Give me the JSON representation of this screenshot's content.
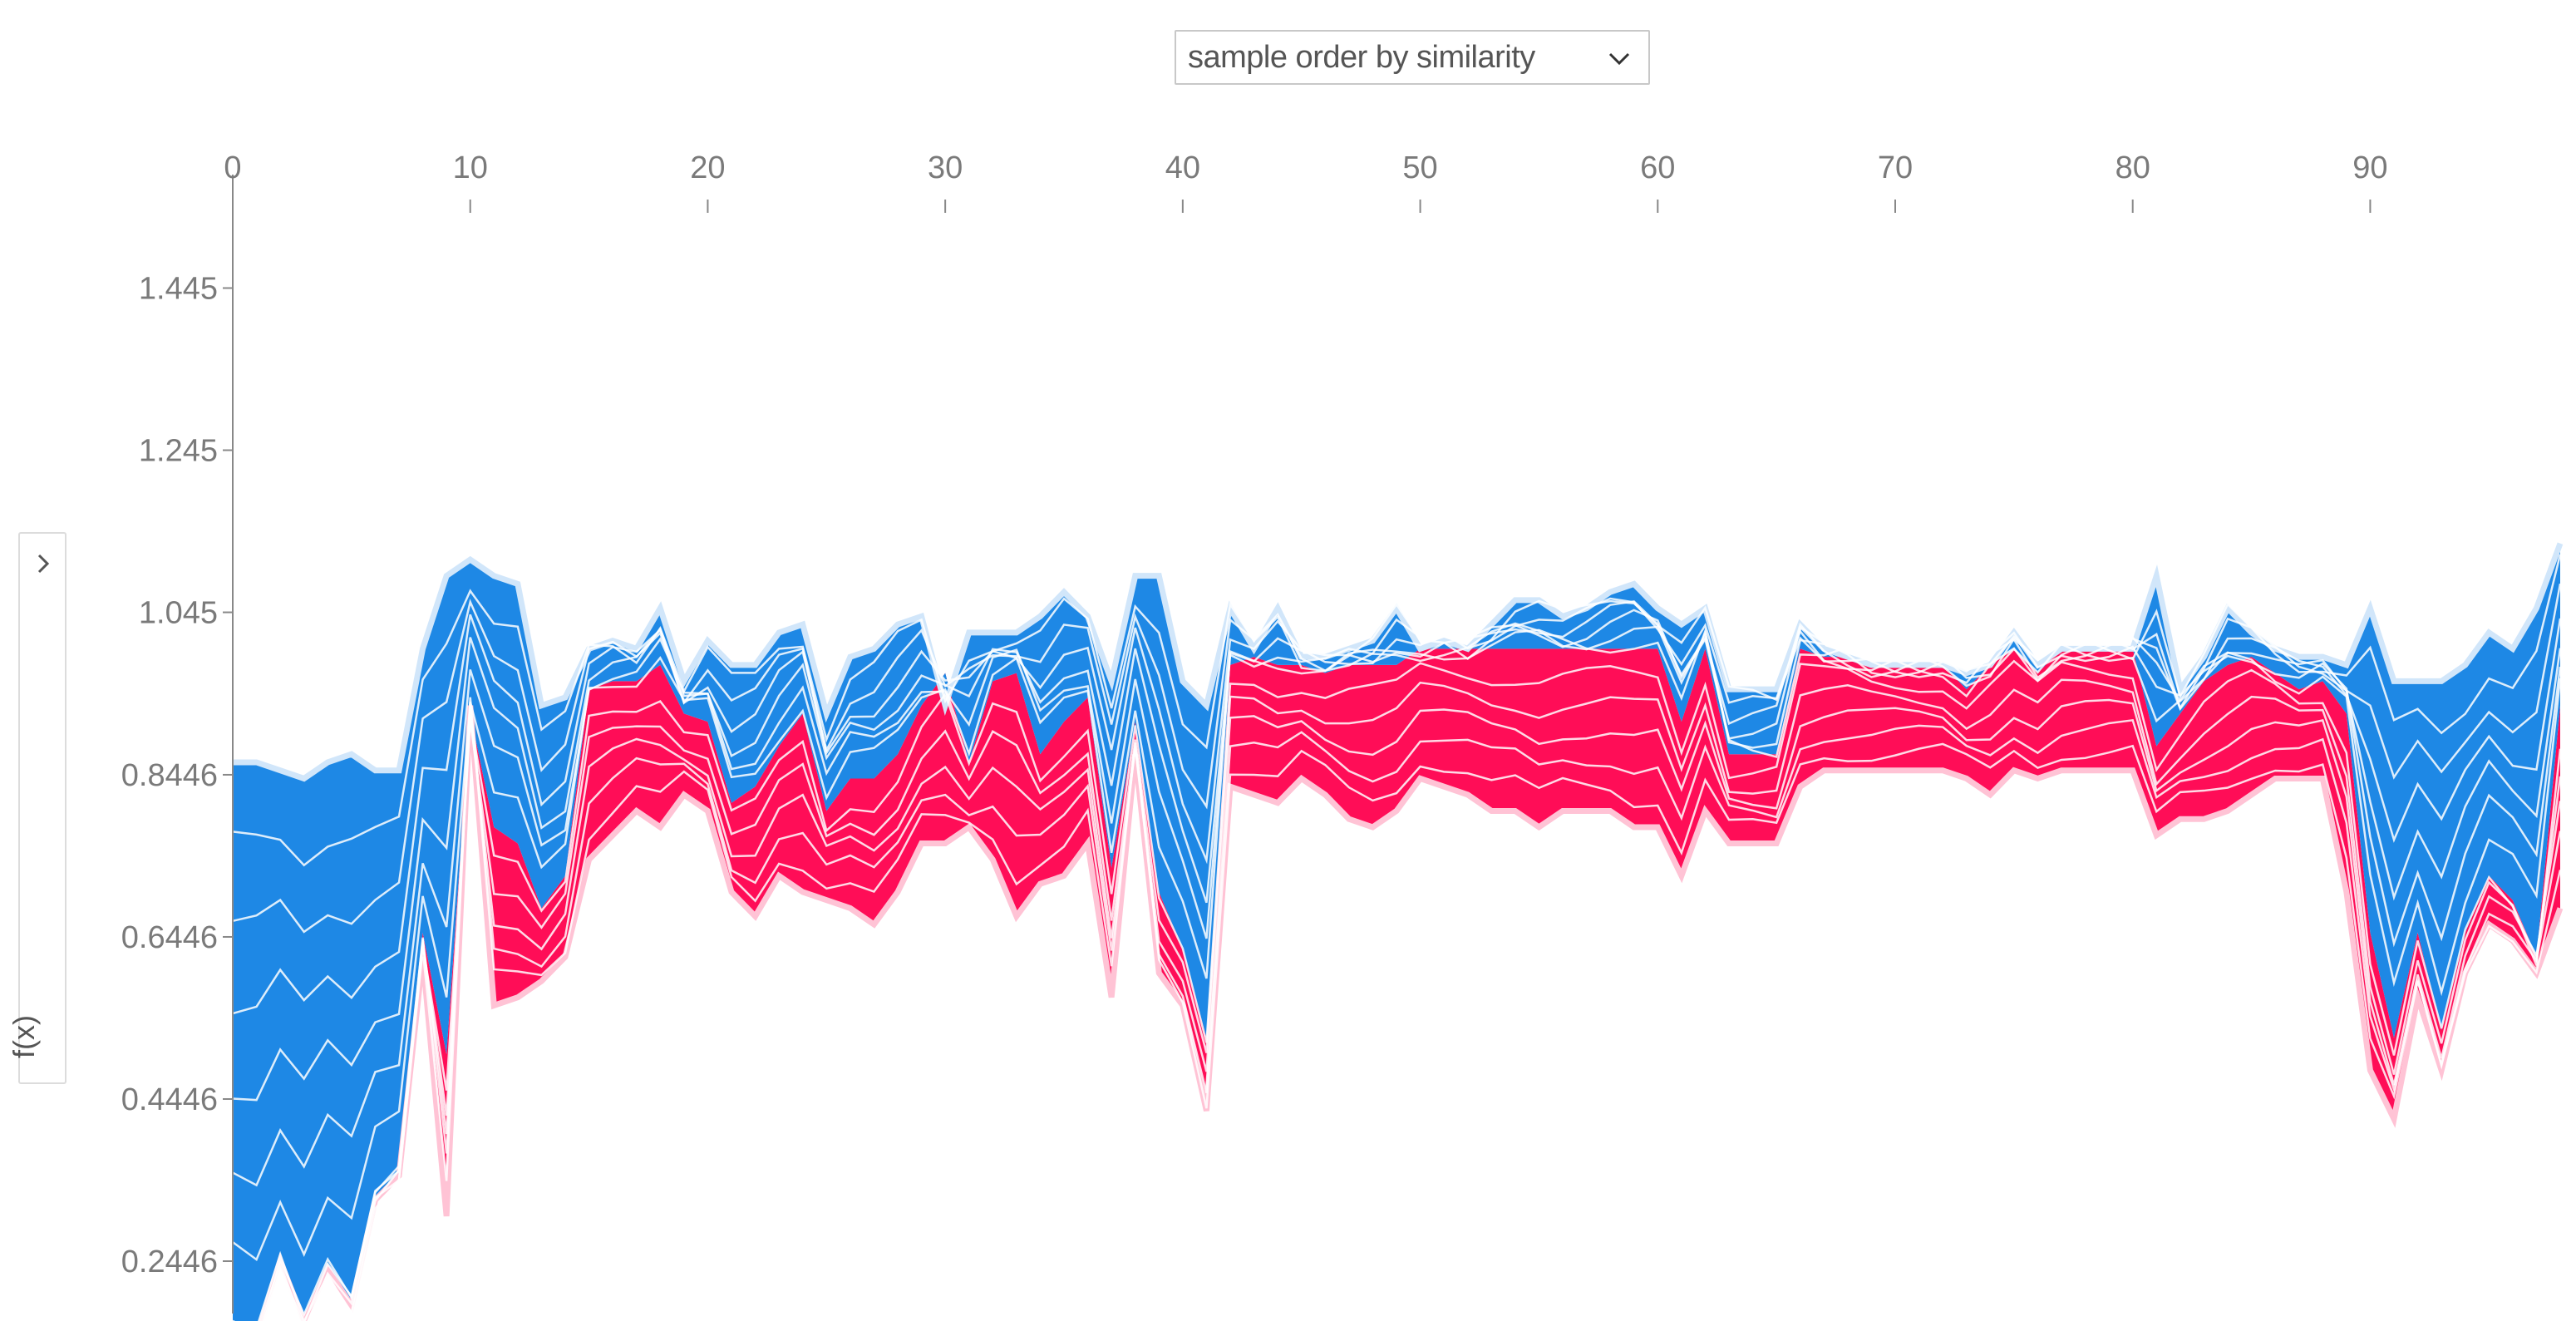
{
  "controls": {
    "order_select": {
      "label": "sample order by similarity",
      "chevron_icon": "chevron-down-icon"
    },
    "side_toggle": {
      "icon": "chevron-right-icon",
      "axis_label": "f(x)"
    }
  },
  "colors": {
    "positive": "#ff0d57",
    "positive_edge": "#ffc3d5",
    "negative": "#1e88e5",
    "negative_edge": "#d1e6fa",
    "separator": "#ffffff",
    "axis": "#888888",
    "tick_text": "#7a7a7a"
  },
  "chart_data": {
    "type": "area",
    "description_units": "stacked additive force plot; x = sample index, y = f(x)",
    "x_ticks": [
      0,
      10,
      20,
      30,
      40,
      50,
      60,
      70,
      80,
      90
    ],
    "y_ticks": [
      1.445,
      1.245,
      1.045,
      0.8446,
      0.6446,
      0.4446,
      0.2446
    ],
    "y_tick_labels": [
      "1.445",
      "1.245",
      "1.045",
      "0.8446",
      "0.6446",
      "0.4446",
      "0.2446"
    ],
    "xlim": [
      0,
      98
    ],
    "ylim": [
      0.18,
      1.585
    ],
    "ylabel": "f(x)",
    "grid": false,
    "x": [
      0,
      1,
      2,
      3,
      4,
      5,
      6,
      7,
      8,
      9,
      10,
      11,
      12,
      13,
      14,
      15,
      16,
      17,
      18,
      19,
      20,
      21,
      22,
      23,
      24,
      25,
      26,
      27,
      28,
      29,
      30,
      31,
      32,
      33,
      34,
      35,
      36,
      37,
      38,
      39,
      40,
      41,
      42,
      43,
      44,
      45,
      46,
      47,
      48,
      49,
      50,
      51,
      52,
      53,
      54,
      55,
      56,
      57,
      58,
      59,
      60,
      61,
      62,
      63,
      64,
      65,
      66,
      67,
      68,
      69,
      70,
      71,
      72,
      73,
      74,
      75,
      76,
      77,
      78,
      79,
      80,
      81,
      82,
      83,
      84,
      85,
      86,
      87,
      88,
      89,
      90,
      91,
      92,
      93,
      94,
      95,
      96,
      97,
      98
    ],
    "fx": [
      0.16,
      0.15,
      0.245,
      0.17,
      0.235,
      0.19,
      0.32,
      0.35,
      0.62,
      0.3,
      0.93,
      0.56,
      0.57,
      0.59,
      0.62,
      0.74,
      0.77,
      0.8,
      0.78,
      0.82,
      0.8,
      0.7,
      0.67,
      0.72,
      0.7,
      0.69,
      0.68,
      0.66,
      0.7,
      0.76,
      0.76,
      0.78,
      0.74,
      0.67,
      0.71,
      0.72,
      0.76,
      0.57,
      0.87,
      0.6,
      0.56,
      0.43,
      0.83,
      0.82,
      0.81,
      0.84,
      0.82,
      0.79,
      0.78,
      0.8,
      0.84,
      0.83,
      0.82,
      0.8,
      0.8,
      0.78,
      0.8,
      0.8,
      0.8,
      0.78,
      0.78,
      0.72,
      0.8,
      0.76,
      0.76,
      0.76,
      0.83,
      0.85,
      0.85,
      0.85,
      0.85,
      0.85,
      0.85,
      0.84,
      0.82,
      0.85,
      0.84,
      0.85,
      0.85,
      0.85,
      0.85,
      0.77,
      0.79,
      0.79,
      0.8,
      0.82,
      0.84,
      0.84,
      0.84,
      0.7,
      0.48,
      0.42,
      0.57,
      0.48,
      0.6,
      0.66,
      0.64,
      0.6,
      0.68
    ],
    "series": [
      {
        "name": "",
        "sign": "positive",
        "top": [
          0.16,
          0.15,
          0.245,
          0.17,
          0.235,
          0.19,
          0.32,
          0.35,
          0.65,
          0.5,
          0.92,
          0.78,
          0.76,
          0.68,
          0.72,
          0.95,
          0.96,
          0.96,
          0.98,
          0.92,
          0.91,
          0.81,
          0.83,
          0.88,
          0.92,
          0.8,
          0.84,
          0.84,
          0.87,
          0.93,
          0.97,
          0.86,
          0.96,
          0.97,
          0.87,
          0.91,
          0.94,
          0.73,
          0.91,
          0.7,
          0.63,
          0.52,
          0.98,
          0.99,
          0.98,
          0.98,
          0.97,
          0.98,
          0.98,
          0.98,
          1.0,
          1.0,
          1.0,
          1.0,
          1.0,
          1.0,
          1.0,
          1.0,
          1.0,
          1.0,
          1.0,
          0.91,
          1.0,
          0.87,
          0.87,
          0.87,
          1.0,
          0.99,
          0.99,
          0.98,
          0.98,
          0.98,
          0.98,
          0.95,
          0.98,
          1.0,
          0.97,
          1.0,
          1.0,
          1.0,
          1.0,
          0.88,
          0.92,
          0.96,
          0.98,
          0.99,
          0.97,
          0.95,
          0.96,
          0.92,
          0.65,
          0.52,
          0.65,
          0.53,
          0.65,
          0.72,
          0.69,
          0.62,
          0.93
        ]
      },
      {
        "name": "",
        "sign": "negative",
        "top": [
          0.86,
          0.86,
          0.85,
          0.84,
          0.86,
          0.87,
          0.85,
          0.85,
          1.0,
          1.09,
          1.11,
          1.09,
          1.08,
          0.93,
          0.94,
          1.0,
          1.01,
          1.0,
          1.05,
          0.96,
          1.01,
          0.98,
          0.98,
          1.02,
          1.03,
          0.92,
          0.99,
          1.0,
          1.03,
          1.04,
          0.93,
          1.02,
          1.02,
          1.02,
          1.04,
          1.07,
          1.04,
          0.96,
          1.09,
          1.09,
          0.96,
          0.93,
          1.05,
          1.0,
          1.05,
          0.99,
          0.99,
          1.0,
          1.01,
          1.05,
          1.0,
          1.01,
          1.0,
          1.03,
          1.06,
          1.06,
          1.04,
          1.05,
          1.07,
          1.08,
          1.05,
          1.03,
          1.05,
          0.95,
          0.95,
          0.95,
          1.03,
          1.0,
          0.99,
          0.98,
          0.98,
          0.98,
          0.98,
          0.97,
          0.98,
          1.02,
          0.98,
          1.0,
          1.0,
          1.0,
          1.0,
          1.09,
          0.95,
          0.99,
          1.05,
          1.02,
          1.0,
          0.99,
          0.99,
          0.98,
          1.05,
          0.96,
          0.96,
          0.96,
          0.98,
          1.02,
          1.0,
          1.05,
          1.13
        ]
      }
    ]
  }
}
